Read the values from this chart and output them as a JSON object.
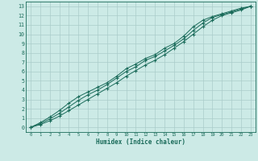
{
  "xlabel": "Humidex (Indice chaleur)",
  "bg_color": "#cceae6",
  "grid_color": "#aaccca",
  "line_color": "#1a6b5a",
  "xlim": [
    -0.5,
    23.5
  ],
  "ylim": [
    -0.5,
    13.5
  ],
  "xticks": [
    0,
    1,
    2,
    3,
    4,
    5,
    6,
    7,
    8,
    9,
    10,
    11,
    12,
    13,
    14,
    15,
    16,
    17,
    18,
    19,
    20,
    21,
    22,
    23
  ],
  "yticks": [
    0,
    1,
    2,
    3,
    4,
    5,
    6,
    7,
    8,
    9,
    10,
    11,
    12,
    13
  ],
  "line1_x": [
    0,
    1,
    2,
    3,
    4,
    5,
    6,
    7,
    8,
    9,
    10,
    11,
    12,
    13,
    14,
    15,
    16,
    17,
    18,
    19,
    20,
    21,
    22,
    23
  ],
  "line1_y": [
    0.0,
    0.3,
    0.7,
    1.2,
    1.8,
    2.4,
    3.0,
    3.6,
    4.2,
    4.8,
    5.5,
    6.1,
    6.7,
    7.2,
    7.8,
    8.5,
    9.2,
    10.0,
    10.8,
    11.5,
    12.0,
    12.3,
    12.6,
    13.0
  ],
  "line2_x": [
    0,
    1,
    2,
    3,
    4,
    5,
    6,
    7,
    8,
    9,
    10,
    11,
    12,
    13,
    14,
    15,
    16,
    17,
    18,
    19,
    20,
    21,
    22,
    23
  ],
  "line2_y": [
    0.0,
    0.4,
    0.9,
    1.5,
    2.2,
    2.9,
    3.5,
    4.0,
    4.6,
    5.3,
    6.0,
    6.5,
    7.2,
    7.6,
    8.2,
    8.8,
    9.5,
    10.4,
    11.2,
    11.8,
    12.1,
    12.4,
    12.7,
    13.0
  ],
  "line3_x": [
    0,
    1,
    2,
    3,
    4,
    5,
    6,
    7,
    8,
    9,
    10,
    11,
    12,
    13,
    14,
    15,
    16,
    17,
    18,
    19,
    20,
    21,
    22,
    23
  ],
  "line3_y": [
    0.0,
    0.5,
    1.1,
    1.8,
    2.6,
    3.3,
    3.8,
    4.3,
    4.8,
    5.5,
    6.3,
    6.8,
    7.4,
    7.8,
    8.5,
    9.0,
    9.8,
    10.8,
    11.5,
    11.9,
    12.2,
    12.5,
    12.8,
    13.0
  ]
}
